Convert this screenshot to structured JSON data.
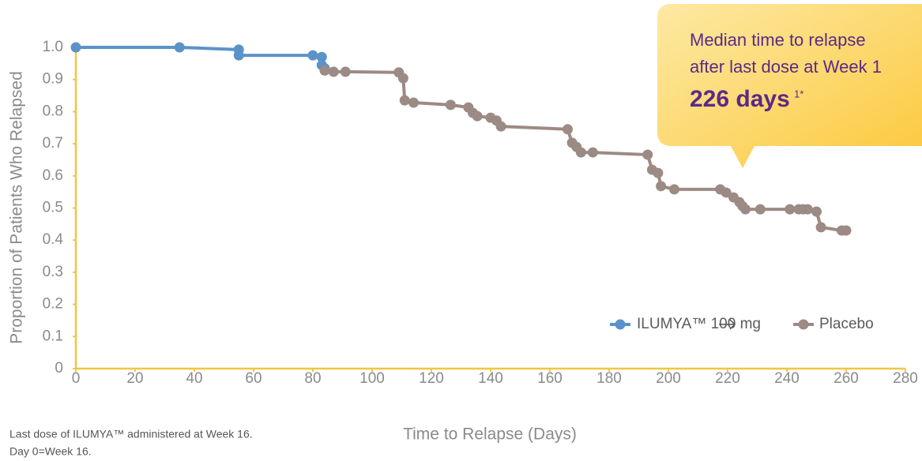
{
  "chart_data": {
    "type": "line",
    "xlabel": "Time to Relapse (Days)",
    "ylabel": "Proportion of Patients Who Relapsed",
    "xlim": [
      0,
      280
    ],
    "ylim": [
      0,
      1.05
    ],
    "xticks": [
      0,
      20,
      40,
      60,
      80,
      100,
      120,
      140,
      160,
      180,
      200,
      220,
      240,
      260,
      280
    ],
    "yticks": [
      0,
      0.1,
      0.2,
      0.3,
      0.4,
      0.5,
      0.6,
      0.7,
      0.8,
      0.9,
      {
        "value": 1,
        "label": "1.0"
      }
    ],
    "axis_color": "#f4c542",
    "series": [
      {
        "name": "ILUMYA™ 100 mg",
        "color": "#5b93c9",
        "x": [
          0,
          35,
          55,
          55,
          80,
          83,
          83,
          84,
          84
        ],
        "values": [
          1.0,
          1.0,
          0.993,
          0.975,
          0.975,
          0.97,
          0.945,
          0.935,
          0.928
        ]
      },
      {
        "name": "Placebo",
        "color": "#9c8a85",
        "x": [
          84,
          87,
          91,
          109,
          110.5,
          111,
          114,
          126.5,
          132.5,
          134,
          135.5,
          140,
          142,
          143.5,
          166,
          167.5,
          169,
          170.5,
          174.5,
          193,
          194.5,
          196.5,
          197.5,
          202,
          217.5,
          219.5,
          222,
          224,
          225,
          226,
          231,
          241,
          244,
          245.5,
          247,
          250,
          251.5,
          258.5,
          260
        ],
        "values": [
          0.928,
          0.924,
          0.924,
          0.922,
          0.904,
          0.835,
          0.828,
          0.821,
          0.813,
          0.796,
          0.786,
          0.781,
          0.772,
          0.754,
          0.745,
          0.703,
          0.69,
          0.673,
          0.673,
          0.666,
          0.619,
          0.609,
          0.568,
          0.558,
          0.558,
          0.548,
          0.533,
          0.518,
          0.506,
          0.496,
          0.496,
          0.496,
          0.496,
          0.496,
          0.496,
          0.489,
          0.44,
          0.43,
          0.43
        ]
      }
    ],
    "annotation": {
      "lines": [
        "Median time to relapse",
        "after last dose at Week 1"
      ],
      "highlight": "226 days",
      "superscript": "1*"
    },
    "footnotes": [
      "Last dose of ILUMYA™ administered at Week 16.",
      "Day 0=Week 16."
    ]
  }
}
